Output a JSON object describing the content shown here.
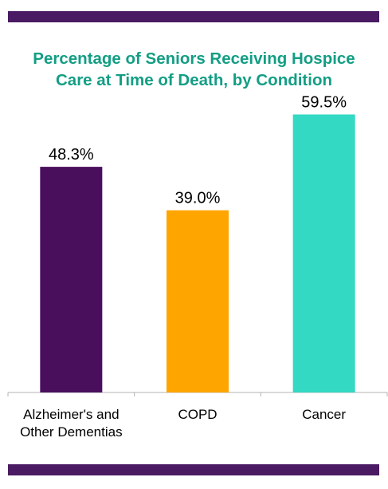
{
  "chart_data": {
    "type": "bar",
    "title_lines": [
      "Percentage of Seniors Receiving Hospice",
      "Care at Time of Death, by Condition"
    ],
    "categories": [
      [
        "Alzheimer's and",
        "Other Dementias"
      ],
      [
        "COPD"
      ],
      [
        "Cancer"
      ]
    ],
    "values": [
      48.3,
      39.0,
      59.5
    ],
    "value_labels": [
      "48.3%",
      "39.0%",
      "59.5%"
    ],
    "bar_colors": [
      "#4a0f5c",
      "#ffa500",
      "#33d9c3"
    ],
    "ylim": [
      0,
      70
    ],
    "grid": false,
    "legend": "none"
  },
  "theme": {
    "band_color": "#4a1a63",
    "title_color": "#139e84",
    "axis_color": "#b3b3b3"
  }
}
